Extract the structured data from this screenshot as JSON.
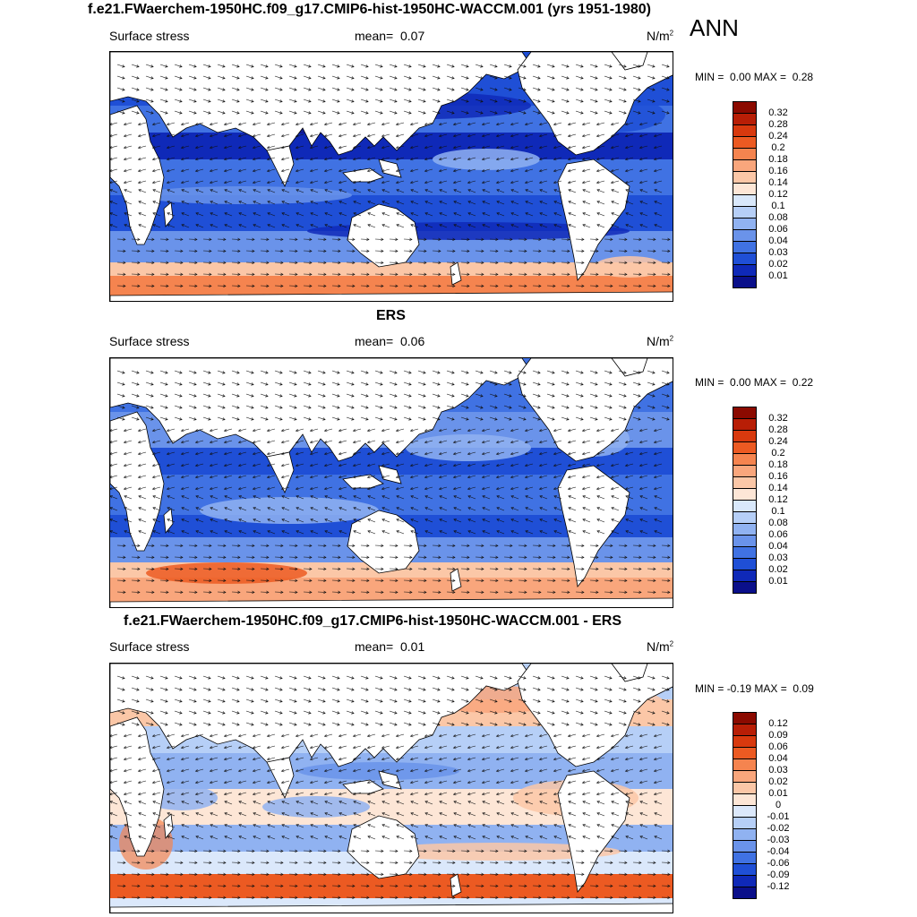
{
  "page": {
    "title": "f.e21.FWaerchem-1950HC.f09_g17.CMIP6-hist-1950HC-WACCM.001 (yrs 1951-1980)",
    "season": "ANN"
  },
  "colors": {
    "land": "#ffffff",
    "coast": "#000000",
    "arrow": "#111111"
  },
  "panels": [
    {
      "id": "model",
      "heading": "",
      "field": "Surface stress",
      "mean_label": "mean=",
      "mean_value": "0.07",
      "units": "N/m",
      "units_sup": "2",
      "min_label": "MIN =",
      "min_value": "0.00",
      "max_label": "MAX =",
      "max_value": "0.28",
      "colorbar": [
        "0.32",
        "0.28",
        "0.24",
        "0.2",
        "0.18",
        "0.16",
        "0.14",
        "0.12",
        "0.1",
        "0.08",
        "0.06",
        "0.04",
        "0.03",
        "0.02",
        "0.01"
      ],
      "palette": [
        "#8b0a00",
        "#b81e06",
        "#d8390e",
        "#ec5a22",
        "#f5844f",
        "#f9a67c",
        "#fbc7a7",
        "#fde6d6",
        "#d9e8fb",
        "#b6cff7",
        "#90b2f1",
        "#6a93ea",
        "#4072e3",
        "#1f4fd6",
        "#0f29b8",
        "#0a0f8a"
      ]
    },
    {
      "id": "obs",
      "heading": "ERS",
      "field": "Surface stress",
      "mean_label": "mean=",
      "mean_value": "0.06",
      "units": "N/m",
      "units_sup": "2",
      "min_label": "MIN =",
      "min_value": "0.00",
      "max_label": "MAX =",
      "max_value": "0.22",
      "colorbar": [
        "0.32",
        "0.28",
        "0.24",
        "0.2",
        "0.18",
        "0.16",
        "0.14",
        "0.12",
        "0.1",
        "0.08",
        "0.06",
        "0.04",
        "0.03",
        "0.02",
        "0.01"
      ],
      "palette": [
        "#8b0a00",
        "#b81e06",
        "#d8390e",
        "#ec5a22",
        "#f5844f",
        "#f9a67c",
        "#fbc7a7",
        "#fde6d6",
        "#d9e8fb",
        "#b6cff7",
        "#90b2f1",
        "#6a93ea",
        "#4072e3",
        "#1f4fd6",
        "#0f29b8",
        "#0a0f8a"
      ]
    },
    {
      "id": "diff",
      "heading": "f.e21.FWaerchem-1950HC.f09_g17.CMIP6-hist-1950HC-WACCM.001 - ERS",
      "field": "Surface stress",
      "mean_label": "mean=",
      "mean_value": "0.01",
      "units": "N/m",
      "units_sup": "2",
      "min_label": "MIN =",
      "min_value": "-0.19",
      "max_label": "MAX =",
      "max_value": "0.09",
      "colorbar": [
        "0.12",
        "0.09",
        "0.06",
        "0.04",
        "0.03",
        "0.02",
        "0.01",
        "0",
        "-0.01",
        "-0.02",
        "-0.03",
        "-0.04",
        "-0.06",
        "-0.09",
        "-0.12"
      ],
      "palette": [
        "#8b0a00",
        "#b81e06",
        "#d8390e",
        "#ec5a22",
        "#f5844f",
        "#f9a67c",
        "#fbc7a7",
        "#fde6d6",
        "#dbe8fb",
        "#b6cff7",
        "#90b2f1",
        "#6a93ea",
        "#4072e3",
        "#1f4fd6",
        "#0f29b8",
        "#0a0f8a"
      ]
    }
  ]
}
